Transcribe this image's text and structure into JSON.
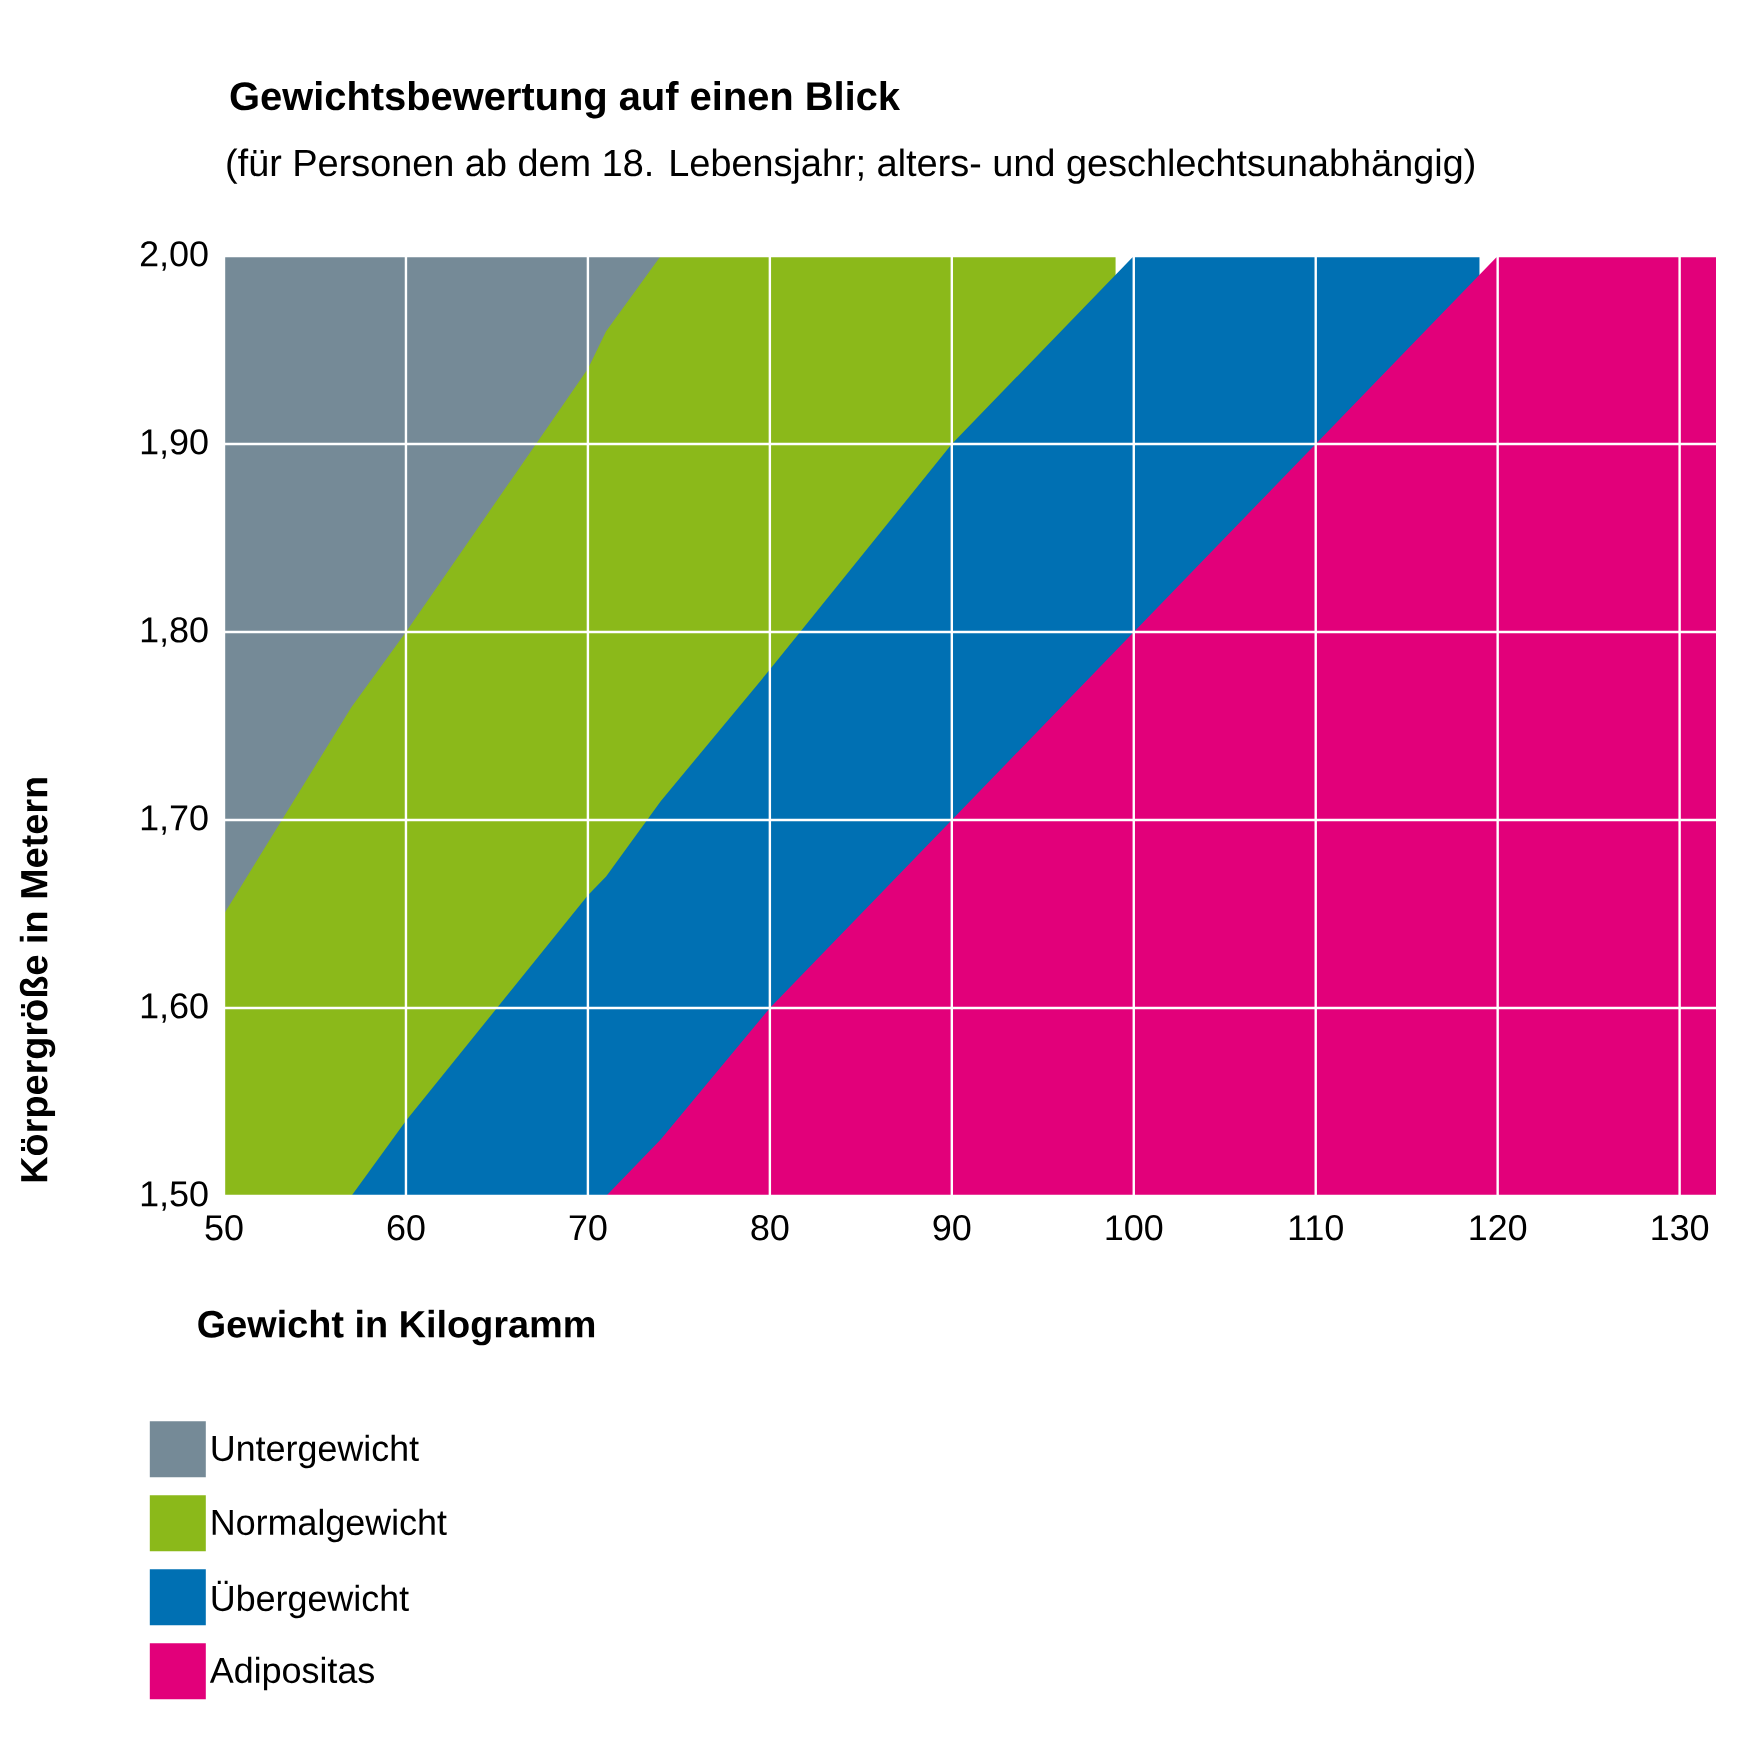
{
  "chart_data": {
    "type": "area",
    "title": "Gewichtsbewertung auf einen Blick",
    "subtitle": "(für Personen ab dem 18. Lebensjahr; alters- und geschlechtsunabhängig)",
    "xlabel": "Gewicht in Kilogramm",
    "ylabel": "Körpergröße in Metern",
    "series": [
      {
        "name": "Untergewicht",
        "color": "#758a97",
        "x": [
          50,
          74
        ],
        "values": [
          2.0,
          2.0
        ]
      },
      {
        "name": "Normalgewicht",
        "color": "#8bb91a",
        "x": [
          50,
          57,
          60,
          70,
          71,
          74,
          80,
          90,
          99
        ],
        "values": [
          1.65,
          1.76,
          1.8,
          1.94,
          1.96,
          2.0,
          2.0,
          2.0,
          2.0
        ]
      },
      {
        "name": "Übergewicht",
        "color": "#0070b3",
        "x": [
          57,
          60,
          70,
          71,
          74,
          80,
          90,
          100,
          110,
          119
        ],
        "values": [
          1.5,
          1.54,
          1.66,
          1.67,
          1.71,
          1.78,
          1.9,
          2.0,
          2.0,
          2.0
        ]
      },
      {
        "name": "Adipositas",
        "color": "#e2007a",
        "x": [
          71,
          74,
          80,
          90,
          100,
          110,
          120,
          132
        ],
        "values": [
          1.5,
          1.53,
          1.6,
          1.7,
          1.8,
          1.9,
          2.0,
          2.0
        ]
      }
    ],
    "xlim": [
      50,
      132
    ],
    "xticks": [
      50,
      60,
      70,
      80,
      90,
      100,
      110,
      120,
      130
    ],
    "ylim": [
      1.5,
      2.0
    ],
    "yticks": [
      {
        "value": 1.5,
        "label": "1,50"
      },
      {
        "value": 1.6,
        "label": "1,60"
      },
      {
        "value": 1.7,
        "label": "1,70"
      },
      {
        "value": 1.8,
        "label": "1,80"
      },
      {
        "value": 1.9,
        "label": "1,90"
      },
      {
        "value": 2.0,
        "label": "2,00"
      }
    ],
    "grid": true,
    "legend": "bottom left"
  }
}
